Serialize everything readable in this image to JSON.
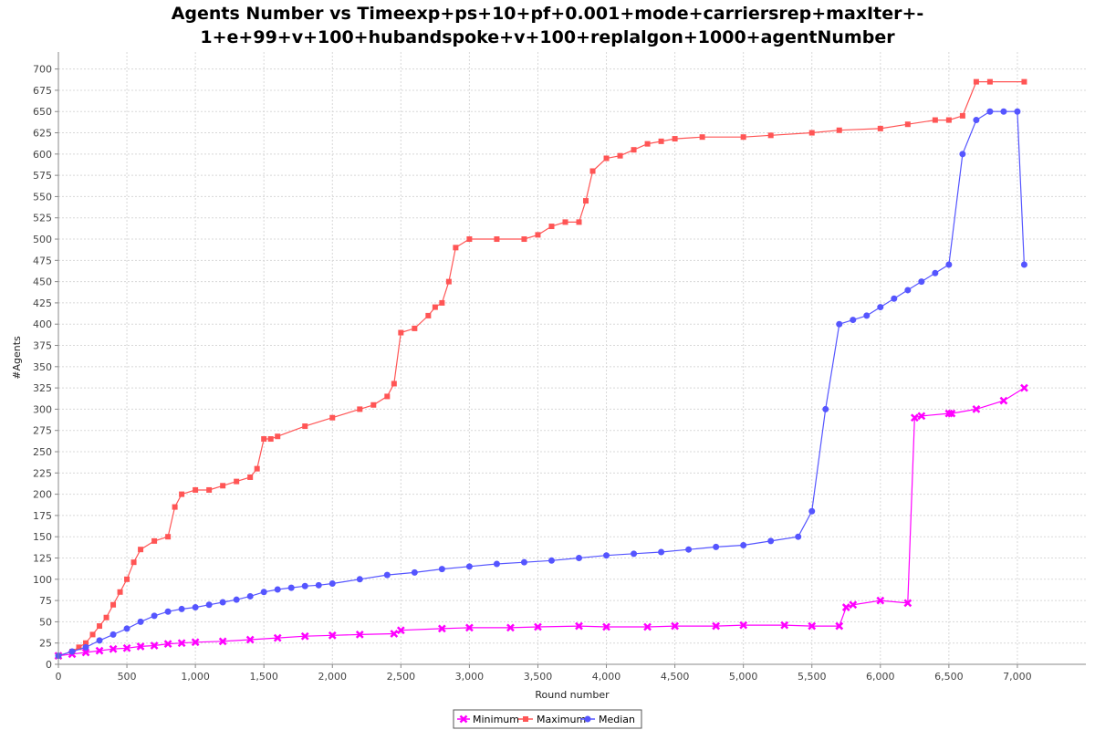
{
  "chart_data": {
    "type": "line",
    "title_line1": "Agents Number vs Timeexp+ps+10+pf+0.001+mode+carriersrep+maxIter+-",
    "title_line2": "1+e+99+v+100+hubandspoke+v+100+replalgon+1000+agentNumber",
    "xlabel": "Round number",
    "ylabel": "#Agents",
    "xlim": [
      0,
      7500
    ],
    "ylim": [
      0,
      720
    ],
    "x_ticks": [
      0,
      500,
      1000,
      1500,
      2000,
      2500,
      3000,
      3500,
      4000,
      4500,
      5000,
      5500,
      6000,
      6500,
      7000
    ],
    "x_tick_labels": [
      "0",
      "500",
      "1,000",
      "1,500",
      "2,000",
      "2,500",
      "3,000",
      "3,500",
      "4,000",
      "4,500",
      "5,000",
      "5,500",
      "6,000",
      "6,500",
      "7,000"
    ],
    "y_ticks": [
      0,
      25,
      50,
      75,
      100,
      125,
      150,
      175,
      200,
      225,
      250,
      275,
      300,
      325,
      350,
      375,
      400,
      425,
      450,
      475,
      500,
      525,
      550,
      575,
      600,
      625,
      650,
      675,
      700
    ],
    "grid": true,
    "legend_position": "bottom-center",
    "series": [
      {
        "name": "Minimum",
        "color": "#ff00ff",
        "marker": "x",
        "x": [
          0,
          100,
          200,
          300,
          400,
          500,
          600,
          700,
          800,
          900,
          1000,
          1200,
          1400,
          1600,
          1800,
          2000,
          2200,
          2450,
          2500,
          2800,
          3000,
          3300,
          3500,
          3800,
          4000,
          4300,
          4500,
          4800,
          5000,
          5300,
          5500,
          5700,
          5750,
          5800,
          6000,
          6200,
          6250,
          6300,
          6500,
          6520,
          6700,
          6900,
          7050
        ],
        "y": [
          10,
          12,
          14,
          16,
          18,
          19,
          21,
          22,
          24,
          25,
          26,
          27,
          29,
          31,
          33,
          34,
          35,
          36,
          40,
          42,
          43,
          43,
          44,
          45,
          44,
          44,
          45,
          45,
          46,
          46,
          45,
          45,
          67,
          70,
          75,
          72,
          290,
          292,
          295,
          295,
          300,
          310,
          325
        ]
      },
      {
        "name": "Maximum",
        "color": "#ff5555",
        "marker": "square",
        "x": [
          0,
          100,
          150,
          200,
          250,
          300,
          350,
          400,
          450,
          500,
          550,
          600,
          700,
          800,
          850,
          900,
          1000,
          1100,
          1200,
          1300,
          1400,
          1450,
          1500,
          1550,
          1600,
          1800,
          2000,
          2200,
          2300,
          2400,
          2450,
          2500,
          2600,
          2700,
          2750,
          2800,
          2850,
          2900,
          3000,
          3200,
          3400,
          3500,
          3600,
          3700,
          3800,
          3850,
          3900,
          4000,
          4100,
          4200,
          4300,
          4400,
          4500,
          4700,
          5000,
          5200,
          5500,
          5700,
          6000,
          6200,
          6400,
          6500,
          6600,
          6700,
          6800,
          7050
        ],
        "y": [
          10,
          15,
          20,
          25,
          35,
          45,
          55,
          70,
          85,
          100,
          120,
          135,
          145,
          150,
          185,
          200,
          205,
          205,
          210,
          215,
          220,
          230,
          265,
          265,
          268,
          280,
          290,
          300,
          305,
          315,
          330,
          390,
          395,
          410,
          420,
          425,
          450,
          490,
          500,
          500,
          500,
          505,
          515,
          520,
          520,
          545,
          580,
          595,
          598,
          605,
          612,
          615,
          618,
          620,
          620,
          622,
          625,
          628,
          630,
          635,
          640,
          640,
          645,
          685,
          685,
          685
        ]
      },
      {
        "name": "Median",
        "color": "#5555ff",
        "marker": "circle",
        "x": [
          0,
          100,
          200,
          300,
          400,
          500,
          600,
          700,
          800,
          900,
          1000,
          1100,
          1200,
          1300,
          1400,
          1500,
          1600,
          1700,
          1800,
          1900,
          2000,
          2200,
          2400,
          2600,
          2800,
          3000,
          3200,
          3400,
          3600,
          3800,
          4000,
          4200,
          4400,
          4600,
          4800,
          5000,
          5200,
          5400,
          5500,
          5600,
          5700,
          5800,
          5900,
          6000,
          6100,
          6200,
          6300,
          6400,
          6500,
          6600,
          6700,
          6800,
          6900,
          7000,
          7050
        ],
        "y": [
          10,
          15,
          20,
          28,
          35,
          42,
          50,
          57,
          62,
          65,
          67,
          70,
          73,
          76,
          80,
          85,
          88,
          90,
          92,
          93,
          95,
          100,
          105,
          108,
          112,
          115,
          118,
          120,
          122,
          125,
          128,
          130,
          132,
          135,
          138,
          140,
          145,
          150,
          180,
          300,
          400,
          405,
          410,
          420,
          430,
          440,
          450,
          460,
          470,
          600,
          640,
          650,
          650,
          650,
          470
        ]
      }
    ]
  }
}
